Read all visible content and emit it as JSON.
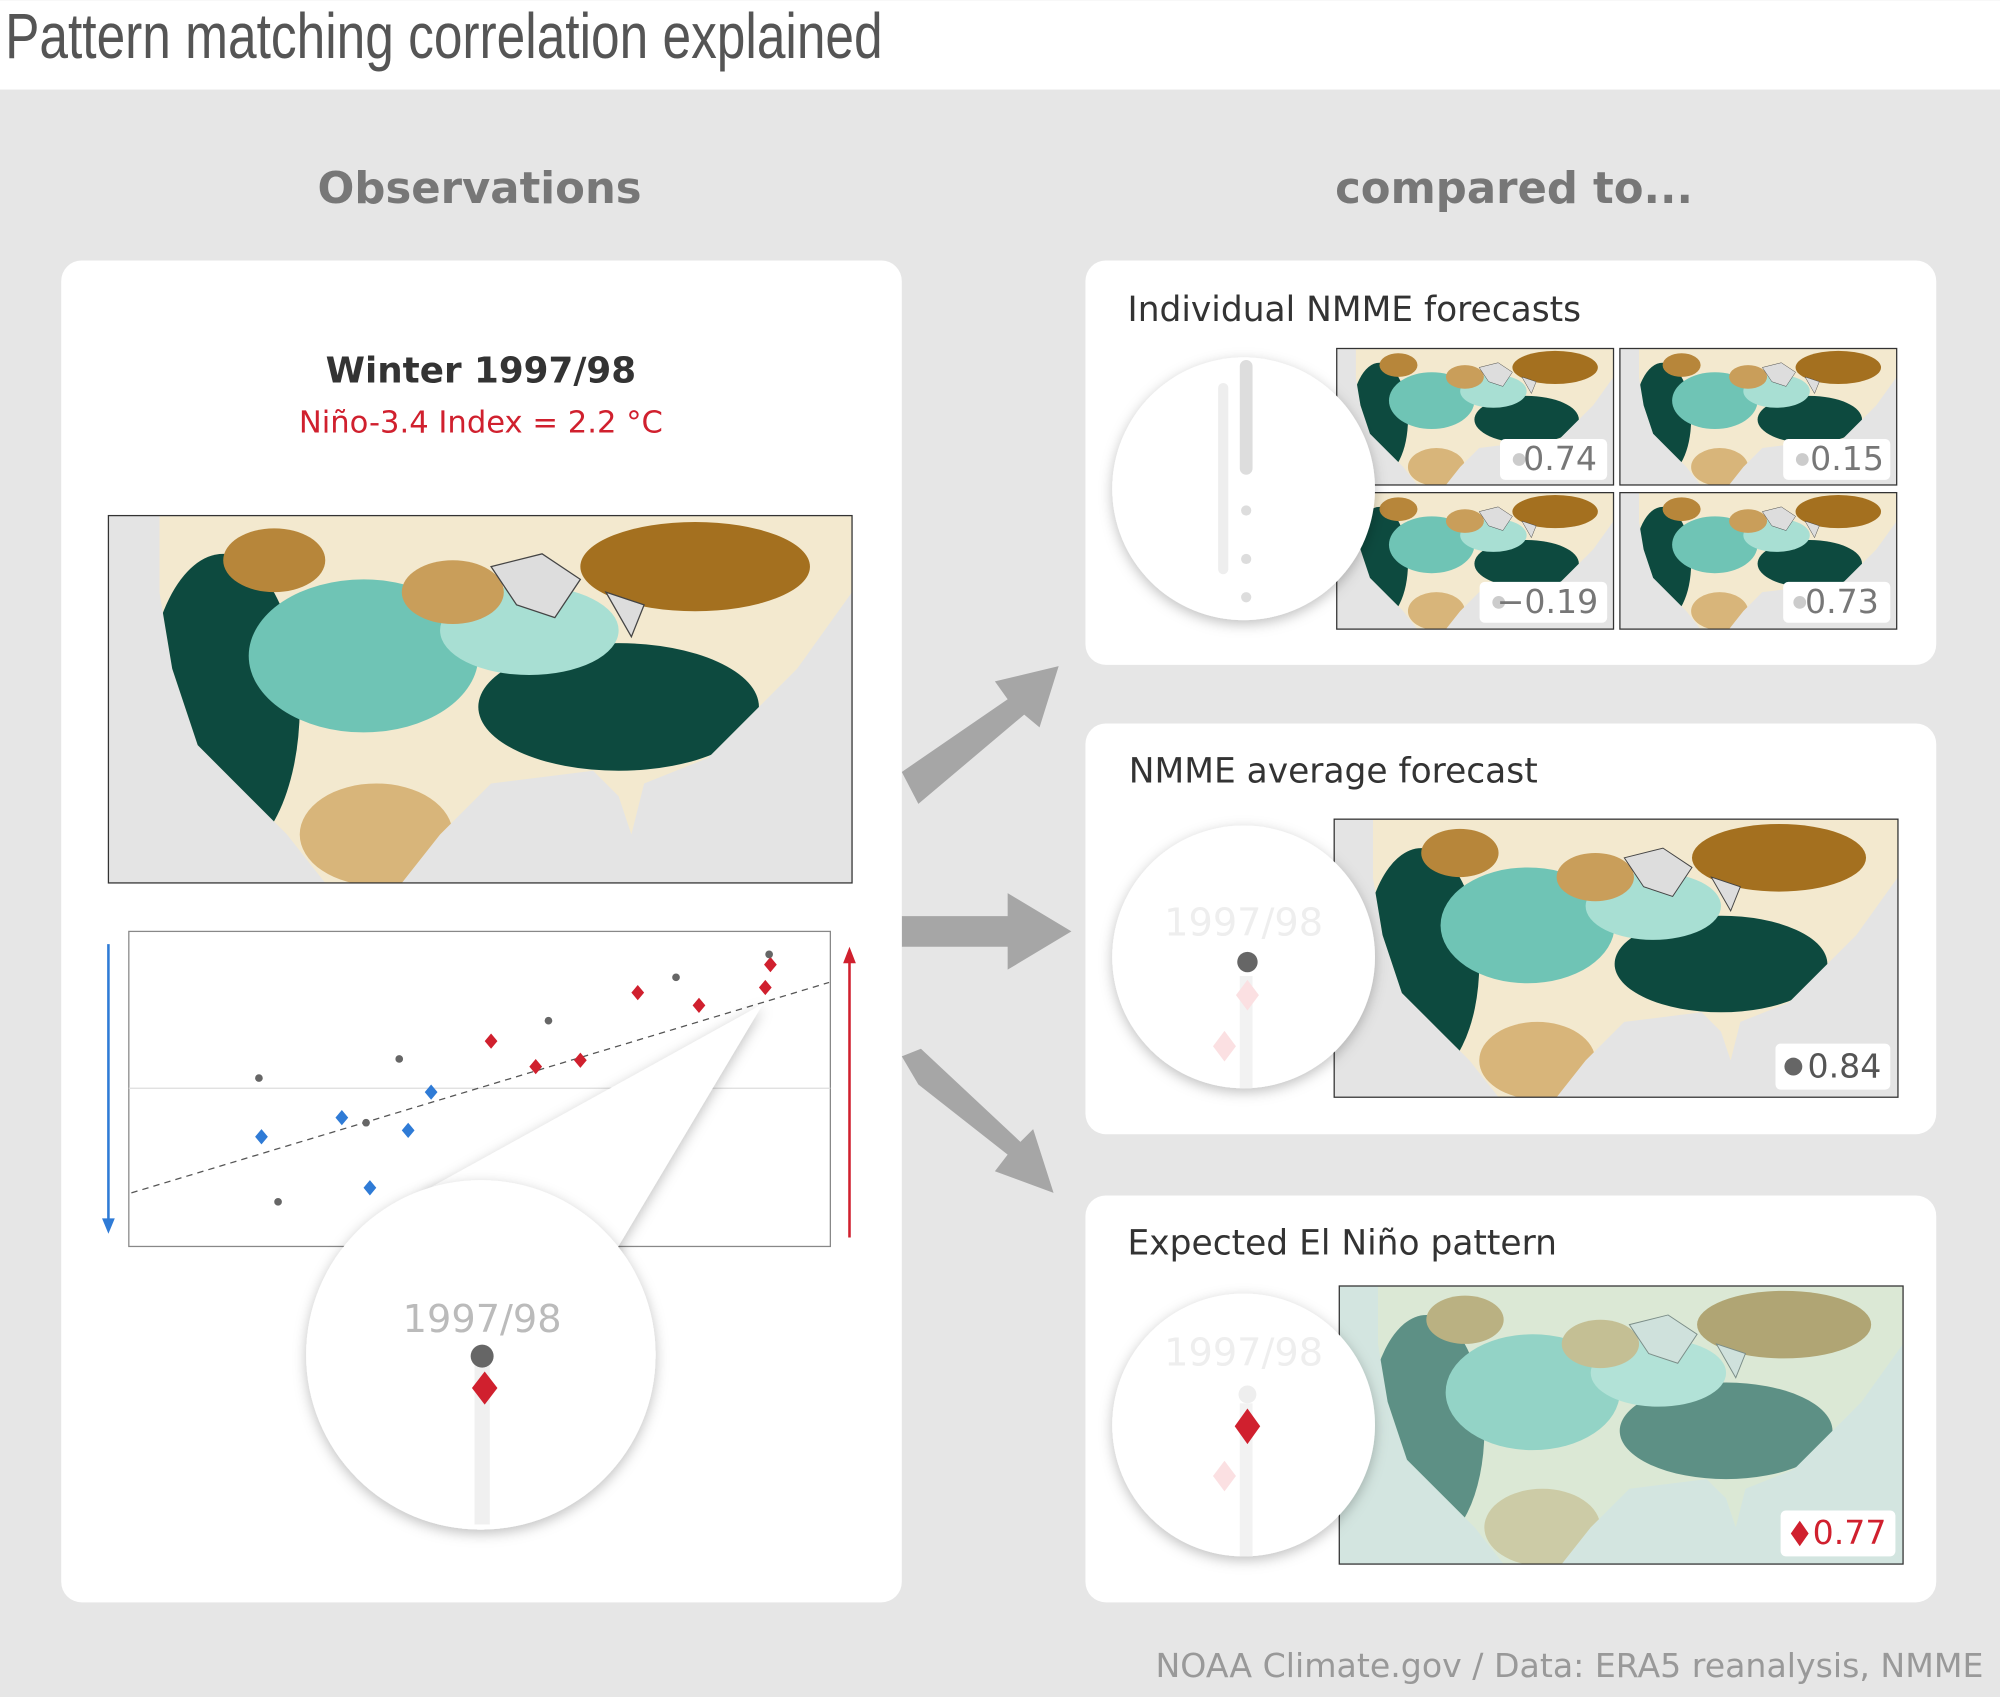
{
  "header": {
    "title": "Pattern matching correlation explained"
  },
  "columns": {
    "left": "Observations",
    "right": "compared to..."
  },
  "observations": {
    "title": "Winter 1997/98",
    "subtitle": "Niño-3.4 Index = 2.2 °C",
    "zoom_label": "1997/98"
  },
  "panels": [
    {
      "title": "Individual NMME forecasts",
      "correlations": [
        "0.74",
        "0.15",
        "−0.19",
        "0.73"
      ]
    },
    {
      "title": "NMME average forecast",
      "zoom_label": "1997/98",
      "correlation": "0.84"
    },
    {
      "title": "Expected El Niño pattern",
      "zoom_label": "1997/98",
      "correlation": "0.77"
    }
  ],
  "credit": "NOAA Climate.gov / Data: ERA5 reanalysis, NMME"
}
